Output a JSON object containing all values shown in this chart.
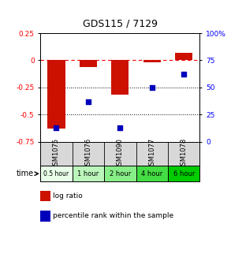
{
  "title": "GDS115 / 7129",
  "samples": [
    "GSM1075",
    "GSM1076",
    "GSM1090",
    "GSM1077",
    "GSM1078"
  ],
  "time_labels": [
    "0.5 hour",
    "1 hour",
    "2 hour",
    "4 hour",
    "6 hour"
  ],
  "time_colors": [
    "#e8ffe8",
    "#bbf5bb",
    "#88ee88",
    "#44dd44",
    "#00cc00"
  ],
  "log_ratios": [
    -0.63,
    -0.06,
    -0.32,
    -0.02,
    0.07
  ],
  "percentile_ranks": [
    13,
    37,
    13,
    50,
    62
  ],
  "bar_color": "#cc1100",
  "dot_color": "#0000bb",
  "ylim_left": [
    -0.75,
    0.25
  ],
  "ylim_right": [
    0,
    100
  ],
  "yticks_left": [
    0.25,
    0.0,
    -0.25,
    -0.5,
    -0.75
  ],
  "yticks_right": [
    100,
    75,
    50,
    25,
    0
  ],
  "dotted_lines": [
    -0.25,
    -0.5
  ],
  "bar_width": 0.55,
  "background_color": "#ffffff",
  "legend_log_label": "log ratio",
  "legend_pct_label": "percentile rank within the sample"
}
